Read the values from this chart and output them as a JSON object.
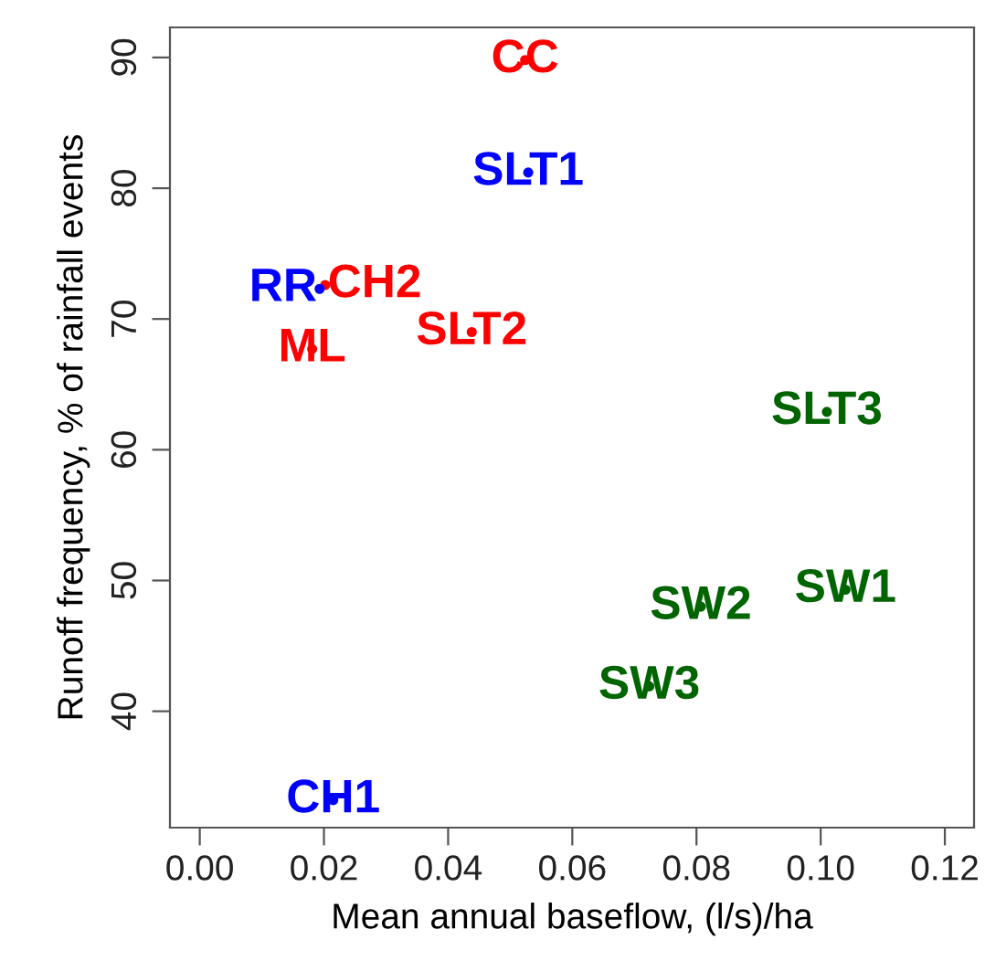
{
  "chart_data": {
    "type": "scatter",
    "xlabel": "Mean annual baseflow, (l/s)/ha",
    "ylabel": "Runoff frequency, % of rainfall events",
    "xlim": [
      -0.0048,
      0.1247
    ],
    "ylim": [
      31.1,
      92.3
    ],
    "xticks": [
      {
        "value": 0,
        "label": "0.00"
      },
      {
        "value": 0.02,
        "label": "0.02"
      },
      {
        "value": 0.04,
        "label": "0.04"
      },
      {
        "value": 0.06,
        "label": "0.06"
      },
      {
        "value": 0.08,
        "label": "0.08"
      },
      {
        "value": 0.1,
        "label": "0.10"
      },
      {
        "value": 0.12,
        "label": "0.12"
      }
    ],
    "yticks": [
      40,
      50,
      60,
      70,
      80,
      90
    ],
    "grid": false,
    "marker": "circle",
    "series": [
      {
        "color": "#ff0000",
        "x": [
          0.0524,
          0.0202,
          0.0181,
          0.0438
        ],
        "values": [
          89.8,
          72.6,
          67.7,
          69.0
        ],
        "value_labels": [
          "CC",
          "CH2",
          "ML",
          "SLT2"
        ]
      },
      {
        "color": "#0000ff",
        "x": [
          0.0529,
          0.0193,
          0.0215
        ],
        "values": [
          81.2,
          72.3,
          33.2
        ],
        "value_labels": [
          "SLT1",
          "RR",
          "CH1"
        ]
      },
      {
        "color": "#006400",
        "x": [
          0.101,
          0.104,
          0.0807,
          0.0724
        ],
        "values": [
          62.9,
          49.3,
          48.0,
          41.9
        ],
        "value_labels": [
          "SLT3",
          "SW1",
          "SW2",
          "SW3"
        ]
      }
    ]
  }
}
